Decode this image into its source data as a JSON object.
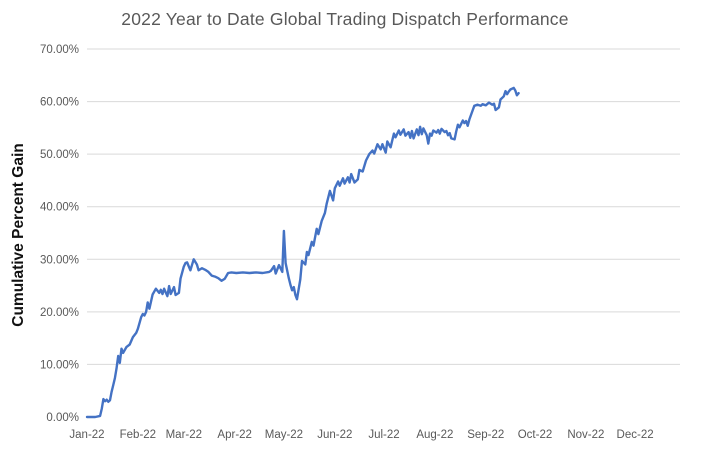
{
  "chart_data": {
    "type": "line",
    "title": "2022 Year to Date Global Trading Dispatch Performance",
    "xlabel": "",
    "ylabel": "Cumulative Percent Gain",
    "x_tick_labels": [
      "Jan-22",
      "Feb-22",
      "Mar-22",
      "Apr-22",
      "May-22",
      "Jun-22",
      "Jul-22",
      "Aug-22",
      "Sep-22",
      "Oct-22",
      "Nov-22",
      "Dec-22"
    ],
    "y_tick_labels": [
      "0.00%",
      "10.00%",
      "20.00%",
      "30.00%",
      "40.00%",
      "50.00%",
      "60.00%",
      "70.00%"
    ],
    "y_tick_values_percent": [
      0,
      10,
      20,
      30,
      40,
      50,
      60,
      70
    ],
    "ylim_percent": [
      0,
      70
    ],
    "x_axis_unit": "day of year 2022, ticks at month starts",
    "month_start_days": [
      1,
      32,
      60,
      91,
      121,
      152,
      182,
      213,
      244,
      274,
      305,
      335
    ],
    "grid": "horizontal gridlines only",
    "legend": "none",
    "series": [
      {
        "name": "Cumulative Percent Gain",
        "color": "#4472C4",
        "points_day_pct": [
          [
            1,
            0
          ],
          [
            6,
            0
          ],
          [
            9,
            0.2
          ],
          [
            10,
            1.6
          ],
          [
            11,
            3.4
          ],
          [
            12,
            3.0
          ],
          [
            13,
            3.3
          ],
          [
            14,
            2.9
          ],
          [
            15,
            3.2
          ],
          [
            16,
            4.8
          ],
          [
            17,
            6.1
          ],
          [
            18,
            7.4
          ],
          [
            19,
            9.2
          ],
          [
            20,
            11.6
          ],
          [
            21,
            10.3
          ],
          [
            22,
            13.0
          ],
          [
            23,
            12.2
          ],
          [
            25,
            13.3
          ],
          [
            27,
            13.8
          ],
          [
            29,
            15.2
          ],
          [
            31,
            16.0
          ],
          [
            32,
            16.8
          ],
          [
            34,
            19.0
          ],
          [
            35,
            19.6
          ],
          [
            36,
            19.3
          ],
          [
            37,
            20.0
          ],
          [
            38,
            21.8
          ],
          [
            39,
            20.6
          ],
          [
            41,
            23.3
          ],
          [
            43,
            24.4
          ],
          [
            45,
            23.6
          ],
          [
            46,
            24.2
          ],
          [
            47,
            23.4
          ],
          [
            48,
            24.4
          ],
          [
            50,
            23.0
          ],
          [
            51,
            24.9
          ],
          [
            52,
            23.4
          ],
          [
            54,
            24.7
          ],
          [
            55,
            23.2
          ],
          [
            57,
            23.6
          ],
          [
            58,
            26.3
          ],
          [
            60,
            28.6
          ],
          [
            61,
            29.3
          ],
          [
            62,
            29.4
          ],
          [
            64,
            27.9
          ],
          [
            66,
            30.0
          ],
          [
            68,
            29.0
          ],
          [
            69,
            27.9
          ],
          [
            71,
            28.3
          ],
          [
            73,
            28.0
          ],
          [
            75,
            27.6
          ],
          [
            77,
            26.9
          ],
          [
            79,
            26.7
          ],
          [
            81,
            26.4
          ],
          [
            83,
            25.9
          ],
          [
            85,
            26.3
          ],
          [
            87,
            27.4
          ],
          [
            89,
            27.5
          ],
          [
            92,
            27.4
          ],
          [
            96,
            27.5
          ],
          [
            100,
            27.4
          ],
          [
            104,
            27.5
          ],
          [
            108,
            27.4
          ],
          [
            112,
            27.6
          ],
          [
            113,
            27.8
          ],
          [
            115,
            28.7
          ],
          [
            116,
            27.3
          ],
          [
            118,
            28.9
          ],
          [
            120,
            27.6
          ],
          [
            121,
            35.4
          ],
          [
            122,
            29.3
          ],
          [
            124,
            26.4
          ],
          [
            125,
            25.1
          ],
          [
            126,
            24.1
          ],
          [
            127,
            24.7
          ],
          [
            128,
            23.2
          ],
          [
            129,
            22.4
          ],
          [
            131,
            26.2
          ],
          [
            132,
            29.7
          ],
          [
            134,
            29.0
          ],
          [
            135,
            31.4
          ],
          [
            136,
            30.8
          ],
          [
            138,
            33.3
          ],
          [
            139,
            32.6
          ],
          [
            141,
            35.8
          ],
          [
            142,
            34.8
          ],
          [
            144,
            37.3
          ],
          [
            146,
            38.8
          ],
          [
            147,
            40.5
          ],
          [
            149,
            43.0
          ],
          [
            151,
            41.2
          ],
          [
            152,
            43.5
          ],
          [
            154,
            44.8
          ],
          [
            155,
            44.0
          ],
          [
            157,
            45.4
          ],
          [
            158,
            44.4
          ],
          [
            160,
            45.6
          ],
          [
            161,
            44.6
          ],
          [
            162,
            46.2
          ],
          [
            164,
            44.6
          ],
          [
            166,
            45.2
          ],
          [
            167,
            47.0
          ],
          [
            169,
            46.7
          ],
          [
            171,
            48.8
          ],
          [
            173,
            50.0
          ],
          [
            175,
            50.7
          ],
          [
            176,
            50.1
          ],
          [
            178,
            51.9
          ],
          [
            180,
            50.9
          ],
          [
            181,
            51.9
          ],
          [
            183,
            50.3
          ],
          [
            184,
            52.4
          ],
          [
            186,
            51.3
          ],
          [
            188,
            53.9
          ],
          [
            189,
            53.2
          ],
          [
            191,
            54.5
          ],
          [
            192,
            53.7
          ],
          [
            194,
            54.7
          ],
          [
            195,
            53.5
          ],
          [
            197,
            54.2
          ],
          [
            198,
            53.1
          ],
          [
            199,
            54.4
          ],
          [
            200,
            53.0
          ],
          [
            202,
            54.7
          ],
          [
            203,
            53.6
          ],
          [
            204,
            55.2
          ],
          [
            205,
            53.8
          ],
          [
            206,
            54.9
          ],
          [
            208,
            53.6
          ],
          [
            209,
            52.0
          ],
          [
            210,
            53.9
          ],
          [
            211,
            53.5
          ],
          [
            212,
            54.5
          ],
          [
            214,
            54.1
          ],
          [
            215,
            54.6
          ],
          [
            216,
            53.9
          ],
          [
            217,
            54.8
          ],
          [
            219,
            54.2
          ],
          [
            220,
            54.4
          ],
          [
            221,
            53.6
          ],
          [
            222,
            54.0
          ],
          [
            223,
            53.0
          ],
          [
            225,
            52.8
          ],
          [
            226,
            54.3
          ],
          [
            227,
            55.6
          ],
          [
            228,
            55.1
          ],
          [
            230,
            56.4
          ],
          [
            231,
            55.9
          ],
          [
            232,
            56.3
          ],
          [
            233,
            55.4
          ],
          [
            234,
            56.6
          ],
          [
            236,
            58.3
          ],
          [
            237,
            59.2
          ],
          [
            239,
            59.4
          ],
          [
            241,
            59.2
          ],
          [
            242,
            59.5
          ],
          [
            244,
            59.3
          ],
          [
            246,
            59.8
          ],
          [
            248,
            59.4
          ],
          [
            249,
            59.6
          ],
          [
            250,
            58.4
          ],
          [
            252,
            58.9
          ],
          [
            253,
            60.4
          ],
          [
            255,
            61.0
          ],
          [
            256,
            62.0
          ],
          [
            257,
            61.4
          ],
          [
            258,
            61.9
          ],
          [
            259,
            62.3
          ],
          [
            261,
            62.6
          ],
          [
            262,
            62.1
          ],
          [
            263,
            61.2
          ],
          [
            264,
            61.6
          ]
        ]
      }
    ],
    "colors": {
      "line": "#4472C4",
      "gridline": "#D9D9D9",
      "title_text": "#595959",
      "tick_text": "#595959",
      "y_axis_title_text": "#111111",
      "background": "#FFFFFF"
    }
  }
}
